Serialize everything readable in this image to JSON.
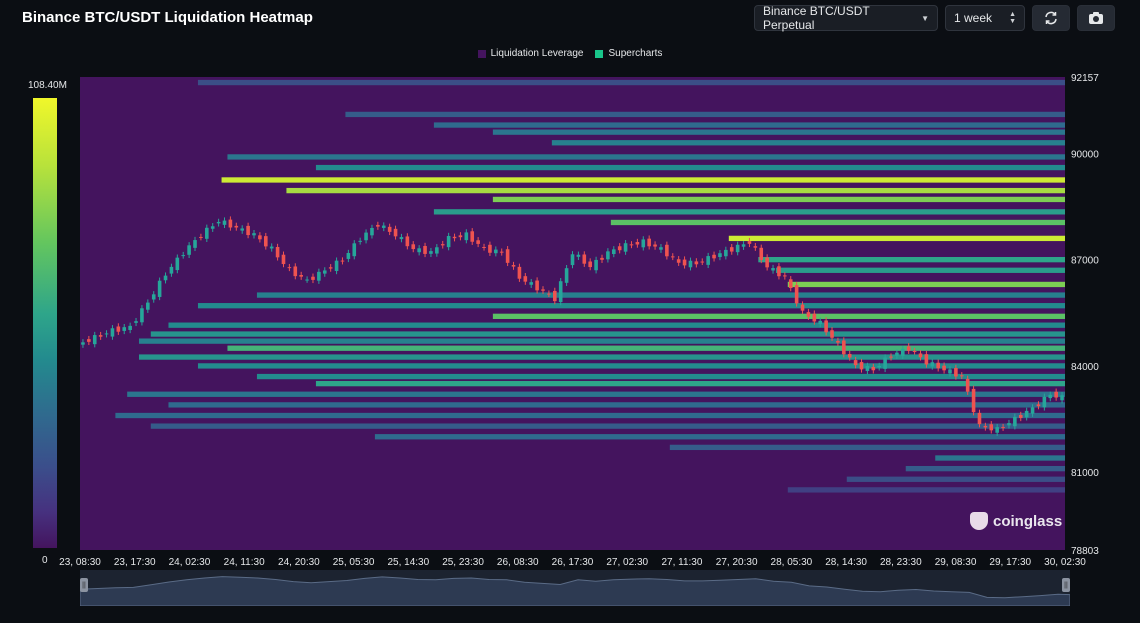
{
  "header": {
    "title": "Binance BTC/USDT Liquidation Heatmap",
    "pair_select": "Binance BTC/USDT Perpetual",
    "period_select": "1 week"
  },
  "legend": [
    {
      "label": "Liquidation Leverage",
      "color": "#44145e"
    },
    {
      "label": "Supercharts",
      "color": "#19c58a"
    }
  ],
  "color_scale": {
    "max_label": "108.40M",
    "min_label": "0"
  },
  "watermark": "coinglass",
  "colors": {
    "background": "#0b0e13",
    "heat_low": "#44145e",
    "heat_high": "#f0f72a",
    "candle_up": "#26a69a",
    "candle_down": "#ef5350"
  },
  "chart_data": {
    "type": "heatmap",
    "title": "Binance BTC/USDT Liquidation Heatmap",
    "x_tick_labels": [
      "23, 08:30",
      "23, 17:30",
      "24, 02:30",
      "24, 11:30",
      "24, 20:30",
      "25, 05:30",
      "25, 14:30",
      "25, 23:30",
      "26, 08:30",
      "26, 17:30",
      "27, 02:30",
      "27, 11:30",
      "27, 20:30",
      "28, 05:30",
      "28, 14:30",
      "28, 23:30",
      "29, 08:30",
      "29, 17:30",
      "30, 02:30"
    ],
    "y_tick_labels": [
      "92157",
      "90000",
      "87000",
      "84000",
      "81000",
      "78803"
    ],
    "ylim": [
      78803,
      92157
    ],
    "x_range_hours": [
      0,
      167
    ],
    "price_path": [
      [
        0,
        84600
      ],
      [
        6,
        85000
      ],
      [
        9,
        85100
      ],
      [
        12,
        85800
      ],
      [
        15,
        86600
      ],
      [
        18,
        87200
      ],
      [
        21,
        87700
      ],
      [
        24,
        88100
      ],
      [
        27,
        87900
      ],
      [
        30,
        87700
      ],
      [
        33,
        87300
      ],
      [
        36,
        86700
      ],
      [
        39,
        86400
      ],
      [
        42,
        86700
      ],
      [
        45,
        87000
      ],
      [
        48,
        87600
      ],
      [
        51,
        88000
      ],
      [
        54,
        87700
      ],
      [
        57,
        87300
      ],
      [
        60,
        87200
      ],
      [
        63,
        87600
      ],
      [
        66,
        87700
      ],
      [
        69,
        87300
      ],
      [
        72,
        87200
      ],
      [
        75,
        86500
      ],
      [
        78,
        86200
      ],
      [
        81,
        85900
      ],
      [
        84,
        87200
      ],
      [
        87,
        86800
      ],
      [
        90,
        87200
      ],
      [
        93,
        87400
      ],
      [
        96,
        87500
      ],
      [
        99,
        87300
      ],
      [
        102,
        86900
      ],
      [
        105,
        86900
      ],
      [
        108,
        87100
      ],
      [
        111,
        87300
      ],
      [
        114,
        87500
      ],
      [
        117,
        86800
      ],
      [
        120,
        86500
      ],
      [
        123,
        85500
      ],
      [
        126,
        85200
      ],
      [
        129,
        84600
      ],
      [
        132,
        84000
      ],
      [
        135,
        83900
      ],
      [
        138,
        84300
      ],
      [
        141,
        84500
      ],
      [
        144,
        84100
      ],
      [
        147,
        83900
      ],
      [
        150,
        83700
      ],
      [
        153,
        82300
      ],
      [
        156,
        82200
      ],
      [
        159,
        82500
      ],
      [
        162,
        82800
      ],
      [
        165,
        83200
      ],
      [
        167,
        83100
      ]
    ],
    "liquidation_bands": [
      {
        "price": 92000,
        "start_hour": 20,
        "intensity": 0.3
      },
      {
        "price": 91100,
        "start_hour": 45,
        "intensity": 0.35
      },
      {
        "price": 90800,
        "start_hour": 60,
        "intensity": 0.4
      },
      {
        "price": 90600,
        "start_hour": 70,
        "intensity": 0.45
      },
      {
        "price": 90300,
        "start_hour": 80,
        "intensity": 0.5
      },
      {
        "price": 89900,
        "start_hour": 25,
        "intensity": 0.45
      },
      {
        "price": 89600,
        "start_hour": 40,
        "intensity": 0.55
      },
      {
        "price": 89250,
        "start_hour": 24,
        "intensity": 0.95
      },
      {
        "price": 88950,
        "start_hour": 35,
        "intensity": 0.9
      },
      {
        "price": 88700,
        "start_hour": 70,
        "intensity": 0.85
      },
      {
        "price": 88350,
        "start_hour": 60,
        "intensity": 0.65
      },
      {
        "price": 88050,
        "start_hour": 90,
        "intensity": 0.8
      },
      {
        "price": 87600,
        "start_hour": 110,
        "intensity": 0.95
      },
      {
        "price": 87000,
        "start_hour": 115,
        "intensity": 0.7
      },
      {
        "price": 86700,
        "start_hour": 118,
        "intensity": 0.65
      },
      {
        "price": 86300,
        "start_hour": 120,
        "intensity": 0.85
      },
      {
        "price": 86000,
        "start_hour": 30,
        "intensity": 0.5
      },
      {
        "price": 85700,
        "start_hour": 20,
        "intensity": 0.55
      },
      {
        "price": 85400,
        "start_hour": 70,
        "intensity": 0.8
      },
      {
        "price": 85150,
        "start_hour": 15,
        "intensity": 0.55
      },
      {
        "price": 84900,
        "start_hour": 12,
        "intensity": 0.6
      },
      {
        "price": 84700,
        "start_hour": 10,
        "intensity": 0.5
      },
      {
        "price": 84500,
        "start_hour": 25,
        "intensity": 0.75
      },
      {
        "price": 84250,
        "start_hour": 10,
        "intensity": 0.6
      },
      {
        "price": 84000,
        "start_hour": 20,
        "intensity": 0.55
      },
      {
        "price": 83700,
        "start_hour": 30,
        "intensity": 0.55
      },
      {
        "price": 83500,
        "start_hour": 40,
        "intensity": 0.7
      },
      {
        "price": 83200,
        "start_hour": 8,
        "intensity": 0.45
      },
      {
        "price": 82900,
        "start_hour": 15,
        "intensity": 0.4
      },
      {
        "price": 82600,
        "start_hour": 6,
        "intensity": 0.4
      },
      {
        "price": 82300,
        "start_hour": 12,
        "intensity": 0.35
      },
      {
        "price": 82000,
        "start_hour": 50,
        "intensity": 0.4
      },
      {
        "price": 81700,
        "start_hour": 100,
        "intensity": 0.35
      },
      {
        "price": 81400,
        "start_hour": 145,
        "intensity": 0.45
      },
      {
        "price": 81100,
        "start_hour": 140,
        "intensity": 0.35
      },
      {
        "price": 80800,
        "start_hour": 130,
        "intensity": 0.3
      },
      {
        "price": 80500,
        "start_hour": 120,
        "intensity": 0.25
      }
    ],
    "grid": false
  }
}
